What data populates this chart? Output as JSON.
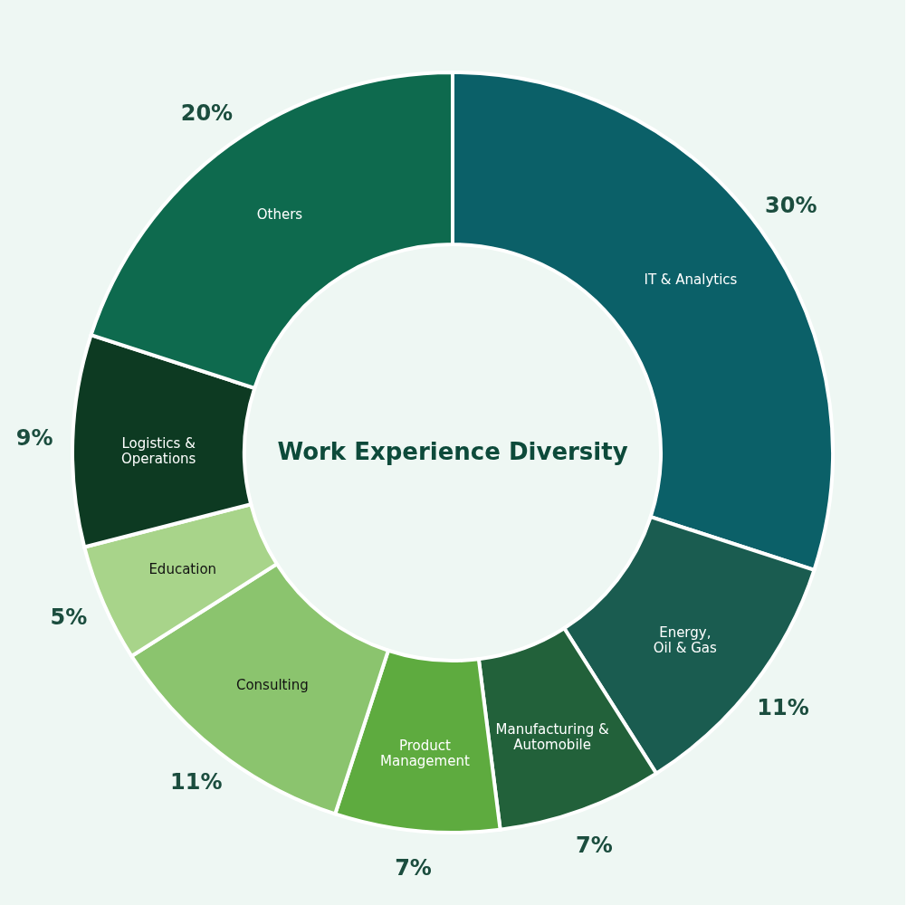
{
  "chart_data": {
    "type": "donut",
    "title": "Work Experience Diversity",
    "categories": [
      "IT & Analytics",
      "Energy,\nOil & Gas",
      "Manufacturing &\nAutomobile",
      "Product\nManagement",
      "Consulting",
      "Education",
      "Logistics &\nOperations",
      "Others"
    ],
    "values": [
      30,
      11,
      7,
      7,
      11,
      5,
      9,
      20
    ],
    "value_labels": [
      "30%",
      "11%",
      "7%",
      "7%",
      "11%",
      "5%",
      "9%",
      "20%"
    ],
    "colors": [
      "#0b6068",
      "#1a5c50",
      "#22613a",
      "#5eab3f",
      "#8bc46e",
      "#a8d48a",
      "#0d3a22",
      "#0e6a4e"
    ],
    "legend": false
  }
}
